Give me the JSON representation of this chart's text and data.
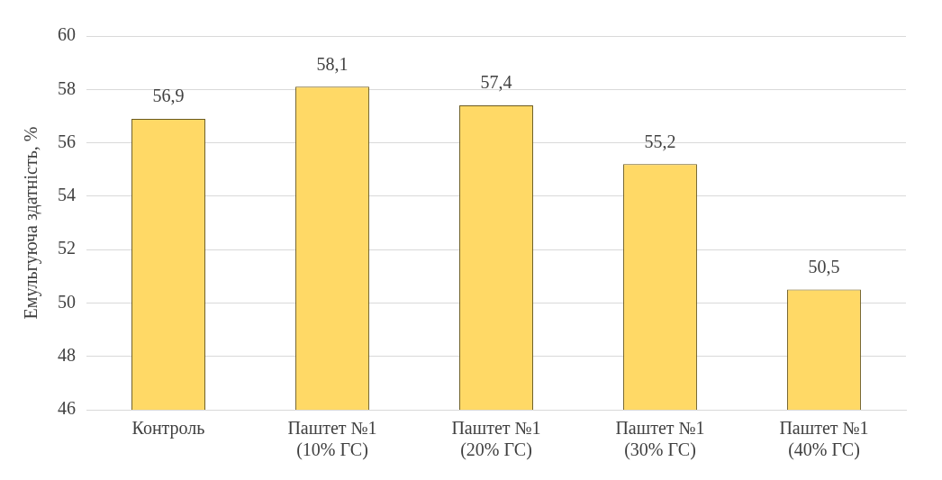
{
  "chart_data": {
    "type": "bar",
    "ylabel": "Емульгуюча здатність, %",
    "categories": [
      "Контроль",
      "Паштет №1\n(10% ГС)",
      "Паштет №1\n(20% ГС)",
      "Паштет №1\n(30% ГС)",
      "Паштет №1\n(40% ГС)"
    ],
    "values": [
      56.9,
      58.1,
      57.4,
      55.2,
      50.5
    ],
    "value_labels": [
      "56,9",
      "58,1",
      "57,4",
      "55,2",
      "50,5"
    ],
    "color": "#ffd966",
    "ylim": [
      46,
      60
    ],
    "yticks": [
      46,
      48,
      50,
      52,
      54,
      56,
      58,
      60
    ],
    "grid": "y",
    "legend": false
  }
}
